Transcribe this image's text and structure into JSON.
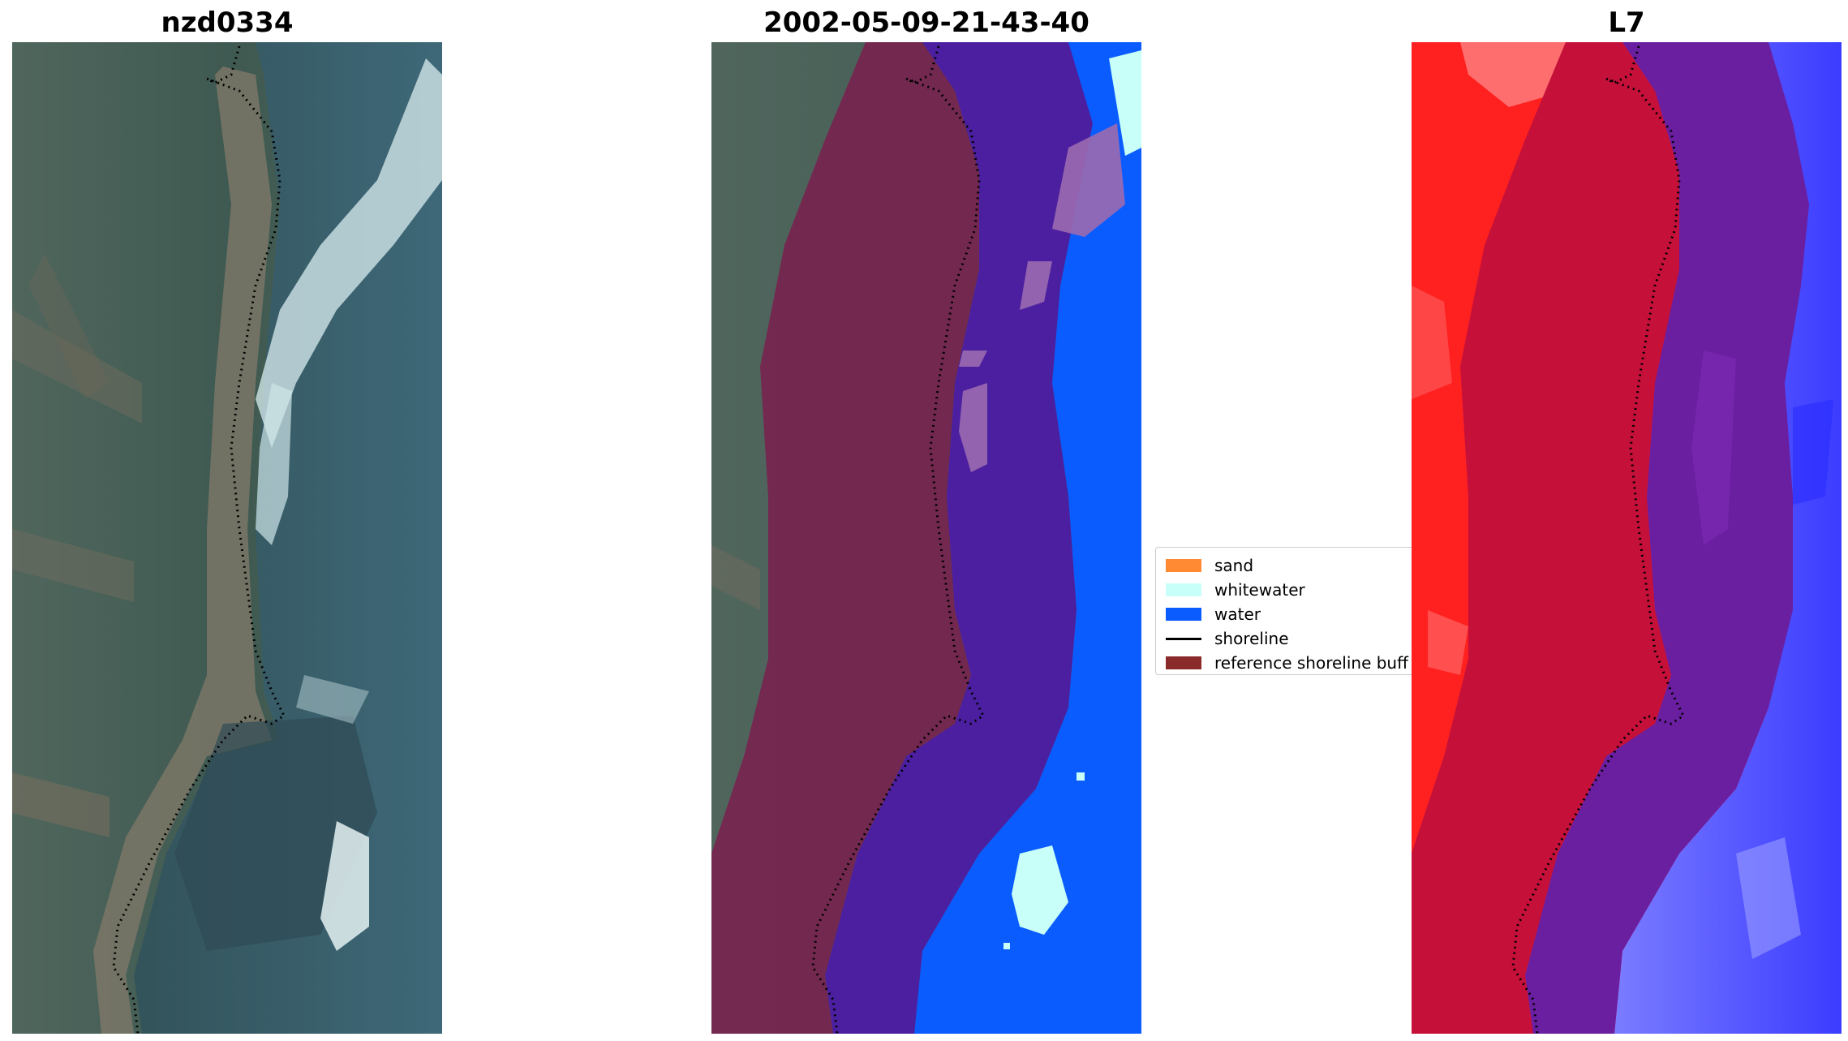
{
  "panels": [
    {
      "title": "nzd0334"
    },
    {
      "title": "2002-05-09-21-43-40"
    },
    {
      "title": "L7"
    }
  ],
  "legend": {
    "items": [
      {
        "label": "sand",
        "color": "#ff8a33",
        "kind": "patch"
      },
      {
        "label": "whitewater",
        "color": "#c8fff8",
        "kind": "patch"
      },
      {
        "label": "water",
        "color": "#0a5cff",
        "kind": "patch"
      },
      {
        "label": "shoreline",
        "color": "#000000",
        "kind": "line"
      },
      {
        "label": "reference shoreline buff",
        "color": "#8b2a2a",
        "kind": "patch"
      }
    ]
  },
  "colors": {
    "land_dark": "#3f5a52",
    "land_brown": "#6f6b5e",
    "sea": "#3e6878",
    "buffer_overlay": "#7a1f4e",
    "buffer_water": "#4b1fa0",
    "water_class": "#0a5cff",
    "whitewater_class": "#c8fff8",
    "false_color_land": "#ff2020",
    "false_color_buffer_land": "#c5103a",
    "false_color_buffer_water": "#6a1ea0",
    "false_color_water": "#5058ff"
  }
}
